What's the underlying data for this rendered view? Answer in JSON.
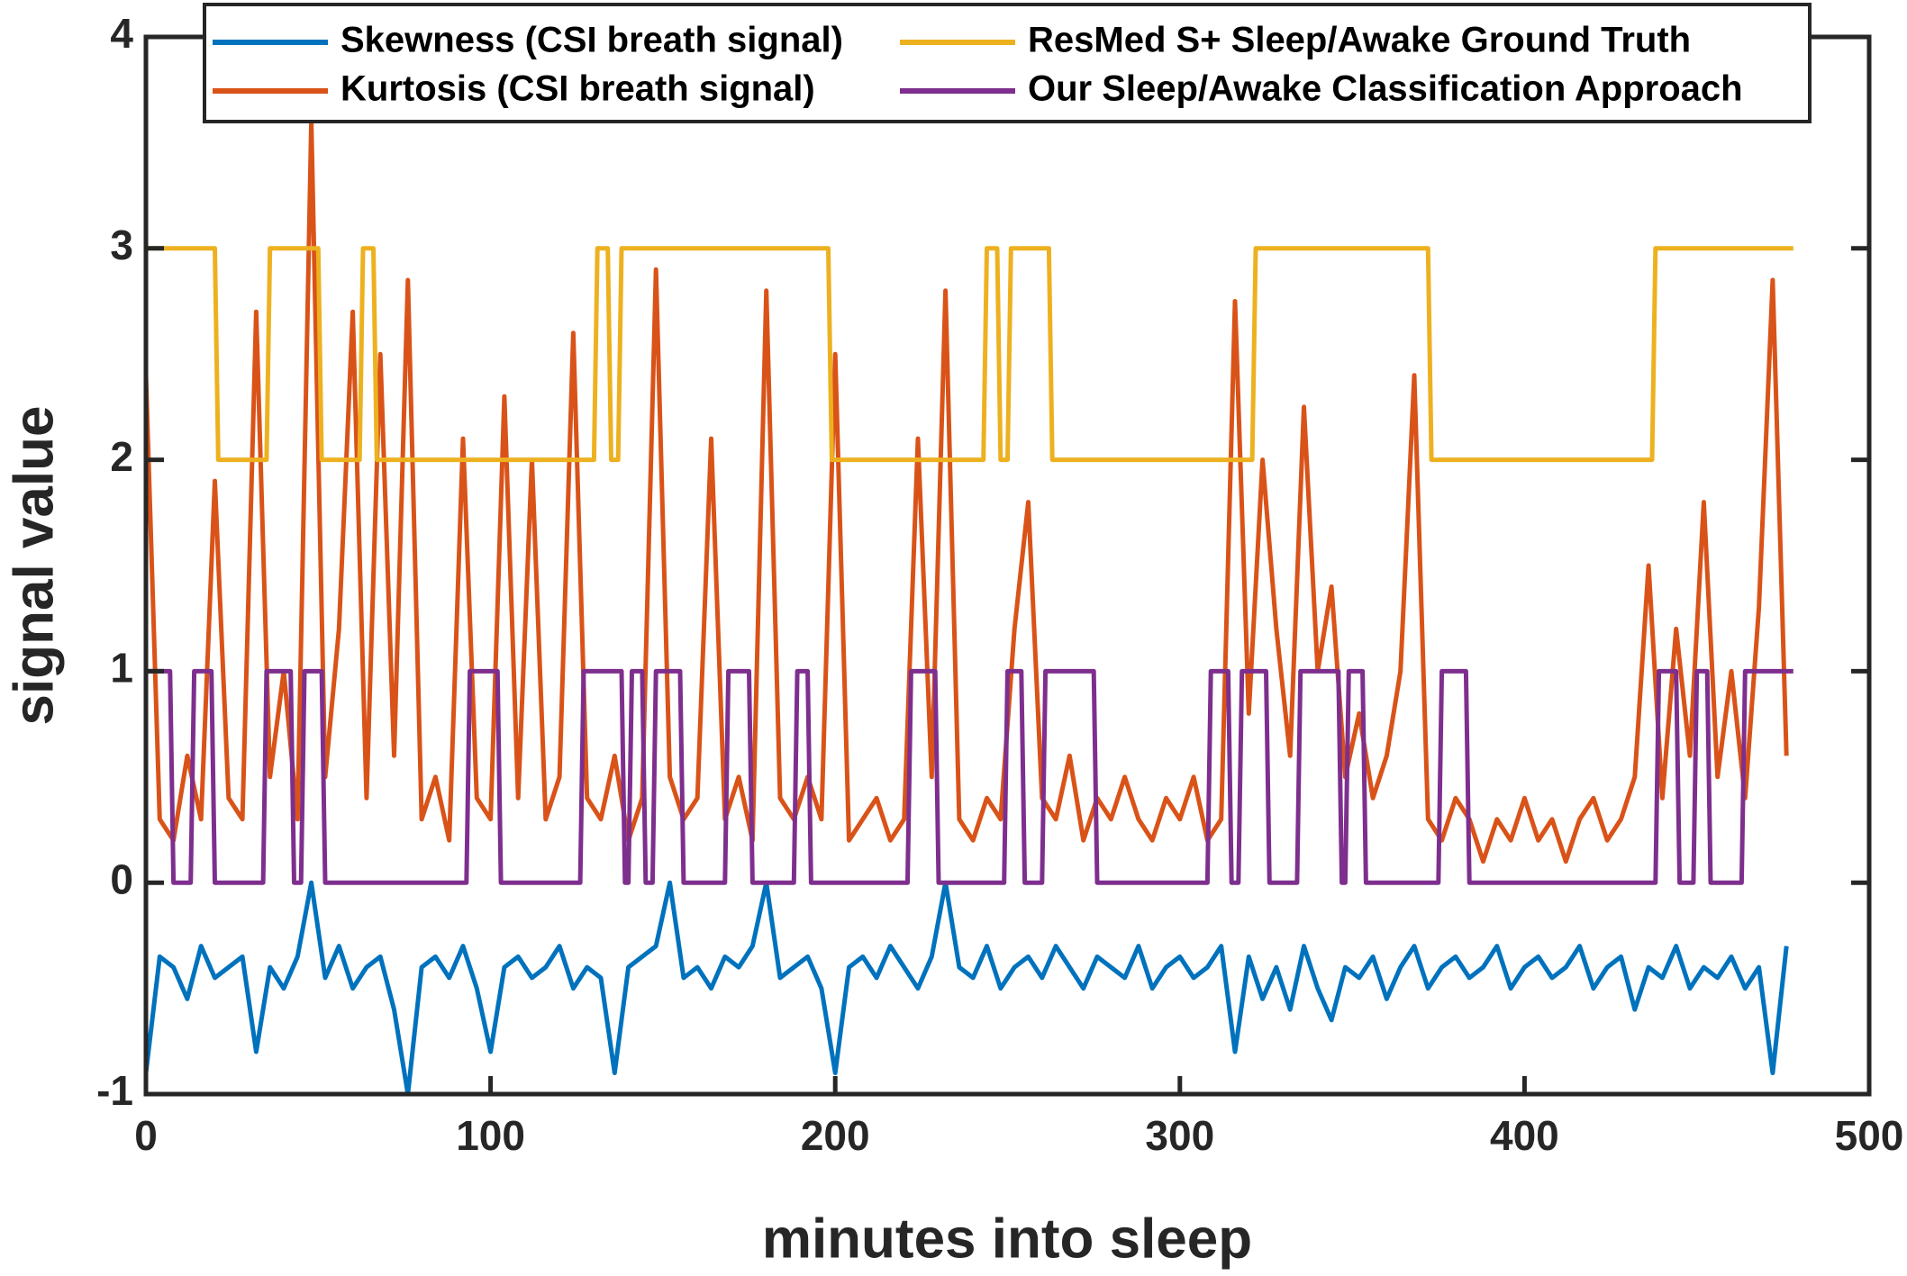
{
  "chart_data": {
    "type": "line",
    "xlabel": "minutes into sleep",
    "ylabel": "signal value",
    "xlim": [
      0,
      500
    ],
    "xticks": [
      0,
      100,
      200,
      300,
      400,
      500
    ],
    "ylim": [
      -1,
      4
    ],
    "yticks": [
      -1,
      0,
      1,
      2,
      3,
      4
    ],
    "legend": "top",
    "series": [
      {
        "name": "Skewness (CSI breath signal)",
        "color": "#0072bd",
        "x": [
          0,
          4,
          8,
          12,
          16,
          20,
          24,
          28,
          32,
          36,
          40,
          44,
          48,
          52,
          56,
          60,
          64,
          68,
          72,
          76,
          80,
          84,
          88,
          92,
          96,
          100,
          104,
          108,
          112,
          116,
          120,
          124,
          128,
          132,
          136,
          140,
          144,
          148,
          152,
          156,
          160,
          164,
          168,
          172,
          176,
          180,
          184,
          188,
          192,
          196,
          200,
          204,
          208,
          212,
          216,
          220,
          224,
          228,
          232,
          236,
          240,
          244,
          248,
          252,
          256,
          260,
          264,
          268,
          272,
          276,
          280,
          284,
          288,
          292,
          296,
          300,
          304,
          308,
          312,
          316,
          320,
          324,
          328,
          332,
          336,
          340,
          344,
          348,
          352,
          356,
          360,
          364,
          368,
          372,
          376,
          380,
          384,
          388,
          392,
          396,
          400,
          404,
          408,
          412,
          416,
          420,
          424,
          428,
          432,
          436,
          440,
          444,
          448,
          452,
          456,
          460,
          464,
          468,
          472,
          476
        ],
        "values": [
          -0.9,
          -0.35,
          -0.4,
          -0.55,
          -0.3,
          -0.45,
          -0.4,
          -0.35,
          -0.8,
          -0.4,
          -0.5,
          -0.35,
          0.0,
          -0.45,
          -0.3,
          -0.5,
          -0.4,
          -0.35,
          -0.6,
          -1.0,
          -0.4,
          -0.35,
          -0.45,
          -0.3,
          -0.5,
          -0.8,
          -0.4,
          -0.35,
          -0.45,
          -0.4,
          -0.3,
          -0.5,
          -0.4,
          -0.45,
          -0.9,
          -0.4,
          -0.35,
          -0.3,
          0.0,
          -0.45,
          -0.4,
          -0.5,
          -0.35,
          -0.4,
          -0.3,
          0.0,
          -0.45,
          -0.4,
          -0.35,
          -0.5,
          -0.9,
          -0.4,
          -0.35,
          -0.45,
          -0.3,
          -0.4,
          -0.5,
          -0.35,
          0.0,
          -0.4,
          -0.45,
          -0.3,
          -0.5,
          -0.4,
          -0.35,
          -0.45,
          -0.3,
          -0.4,
          -0.5,
          -0.35,
          -0.4,
          -0.45,
          -0.3,
          -0.5,
          -0.4,
          -0.35,
          -0.45,
          -0.4,
          -0.3,
          -0.8,
          -0.35,
          -0.55,
          -0.4,
          -0.6,
          -0.3,
          -0.5,
          -0.65,
          -0.4,
          -0.45,
          -0.35,
          -0.55,
          -0.4,
          -0.3,
          -0.5,
          -0.4,
          -0.35,
          -0.45,
          -0.4,
          -0.3,
          -0.5,
          -0.4,
          -0.35,
          -0.45,
          -0.4,
          -0.3,
          -0.5,
          -0.4,
          -0.35,
          -0.6,
          -0.4,
          -0.45,
          -0.3,
          -0.5,
          -0.4,
          -0.45,
          -0.35,
          -0.5,
          -0.4,
          -0.9,
          -0.3
        ],
        "line_width": 5
      },
      {
        "name": "Kurtosis (CSI breath signal)",
        "color": "#d95319",
        "x": [
          0,
          4,
          8,
          12,
          16,
          20,
          24,
          28,
          32,
          36,
          40,
          44,
          48,
          52,
          56,
          60,
          64,
          68,
          72,
          76,
          80,
          84,
          88,
          92,
          96,
          100,
          104,
          108,
          112,
          116,
          120,
          124,
          128,
          132,
          136,
          140,
          144,
          148,
          152,
          156,
          160,
          164,
          168,
          172,
          176,
          180,
          184,
          188,
          192,
          196,
          200,
          204,
          208,
          212,
          216,
          220,
          224,
          228,
          232,
          236,
          240,
          244,
          248,
          252,
          256,
          260,
          264,
          268,
          272,
          276,
          280,
          284,
          288,
          292,
          296,
          300,
          304,
          308,
          312,
          316,
          320,
          324,
          328,
          332,
          336,
          340,
          344,
          348,
          352,
          356,
          360,
          364,
          368,
          372,
          376,
          380,
          384,
          388,
          392,
          396,
          400,
          404,
          408,
          412,
          416,
          420,
          424,
          428,
          432,
          436,
          440,
          444,
          448,
          452,
          456,
          460,
          464,
          468,
          472,
          476
        ],
        "values": [
          2.4,
          0.3,
          0.2,
          0.6,
          0.3,
          1.9,
          0.4,
          0.3,
          2.7,
          0.5,
          1.0,
          0.3,
          3.6,
          0.5,
          1.2,
          2.7,
          0.4,
          2.5,
          0.6,
          2.85,
          0.3,
          0.5,
          0.2,
          2.1,
          0.4,
          0.3,
          2.3,
          0.4,
          2.0,
          0.3,
          0.5,
          2.6,
          0.4,
          0.3,
          0.6,
          0.2,
          0.4,
          2.9,
          0.5,
          0.3,
          0.4,
          2.1,
          0.3,
          0.5,
          0.2,
          2.8,
          0.4,
          0.3,
          0.5,
          0.3,
          2.5,
          0.2,
          0.3,
          0.4,
          0.2,
          0.3,
          2.1,
          0.5,
          2.8,
          0.3,
          0.2,
          0.4,
          0.3,
          1.2,
          1.8,
          0.4,
          0.3,
          0.6,
          0.2,
          0.4,
          0.3,
          0.5,
          0.3,
          0.2,
          0.4,
          0.3,
          0.5,
          0.2,
          0.3,
          2.75,
          0.8,
          2.0,
          1.2,
          0.6,
          2.25,
          1.0,
          1.4,
          0.5,
          0.8,
          0.4,
          0.6,
          1.0,
          2.4,
          0.3,
          0.2,
          0.4,
          0.3,
          0.1,
          0.3,
          0.2,
          0.4,
          0.2,
          0.3,
          0.1,
          0.3,
          0.4,
          0.2,
          0.3,
          0.5,
          1.5,
          0.4,
          1.2,
          0.6,
          1.8,
          0.5,
          1.0,
          0.4,
          1.3,
          2.85,
          0.6
        ],
        "line_width": 5
      },
      {
        "name": "ResMed S+ Sleep/Awake Ground Truth",
        "color": "#edb120",
        "x": [
          0,
          20,
          21,
          35,
          36,
          50,
          51,
          62,
          63,
          66,
          67,
          130,
          131,
          134,
          135,
          137,
          138,
          198,
          199,
          243,
          244,
          247,
          248,
          250,
          251,
          262,
          263,
          321,
          322,
          372,
          373,
          437,
          438,
          478
        ],
        "values": [
          3,
          3,
          2,
          2,
          3,
          3,
          2,
          2,
          3,
          3,
          2,
          2,
          3,
          3,
          2,
          2,
          3,
          3,
          2,
          2,
          3,
          3,
          2,
          2,
          3,
          3,
          2,
          2,
          3,
          3,
          2,
          2,
          3,
          3
        ],
        "line_width": 5
      },
      {
        "name": "Our Sleep/Awake Classification Approach",
        "color": "#7e2f8e",
        "x": [
          0,
          7,
          8,
          13,
          14,
          19,
          20,
          34,
          35,
          42,
          43,
          45,
          46,
          51,
          52,
          93,
          94,
          102,
          103,
          126,
          127,
          138,
          139,
          140,
          141,
          144,
          145,
          147,
          148,
          155,
          156,
          168,
          169,
          175,
          176,
          188,
          189,
          192,
          193,
          221,
          222,
          229,
          230,
          249,
          250,
          254,
          255,
          260,
          261,
          275,
          276,
          308,
          309,
          314,
          315,
          317,
          318,
          325,
          326,
          334,
          335,
          346,
          347,
          348,
          349,
          353,
          354,
          375,
          376,
          383,
          384,
          438,
          439,
          444,
          445,
          449,
          450,
          453,
          454,
          463,
          464,
          478
        ],
        "values": [
          1,
          1,
          0,
          0,
          1,
          1,
          0,
          0,
          1,
          1,
          0,
          0,
          1,
          1,
          0,
          0,
          1,
          1,
          0,
          0,
          1,
          1,
          0,
          0,
          1,
          1,
          0,
          0,
          1,
          1,
          0,
          0,
          1,
          1,
          0,
          0,
          1,
          1,
          0,
          0,
          1,
          1,
          0,
          0,
          1,
          1,
          0,
          0,
          1,
          1,
          0,
          0,
          1,
          1,
          0,
          0,
          1,
          1,
          0,
          0,
          1,
          1,
          0,
          0,
          1,
          1,
          0,
          0,
          1,
          1,
          0,
          0,
          1,
          1,
          0,
          0,
          1,
          1,
          0,
          0,
          1,
          1
        ],
        "line_width": 5
      }
    ]
  }
}
